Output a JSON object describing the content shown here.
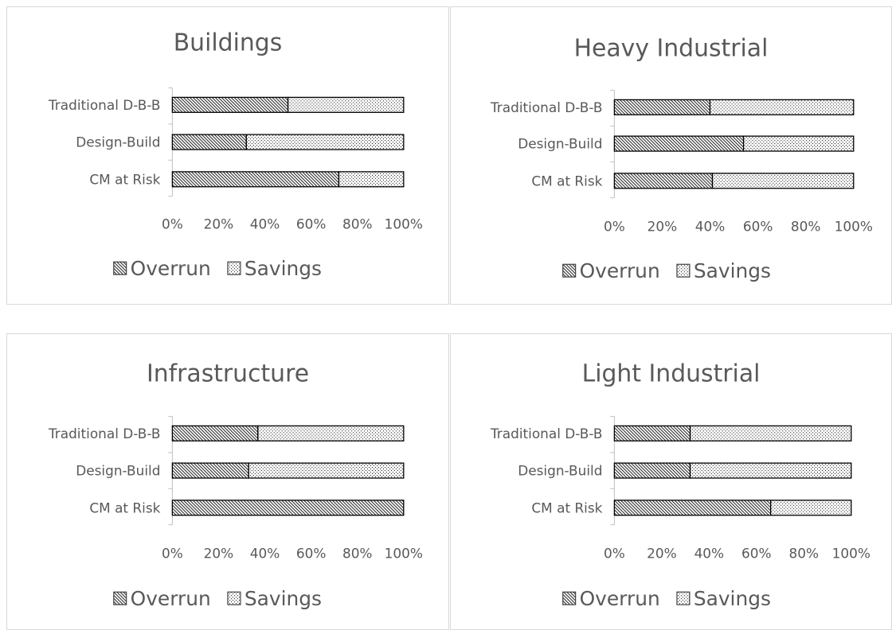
{
  "legend": [
    "Overrun",
    "Savings"
  ],
  "colors": {
    "text": "#595959",
    "bar_stroke": "#000000",
    "axis": "#bfbfbf",
    "panel_border": "#d9d9d9"
  },
  "chart_data": [
    {
      "type": "bar",
      "orientation": "horizontal",
      "stacked": "percent",
      "title": "Buildings",
      "categories": [
        "Traditional D-B-B",
        "Design-Build",
        "CM at Risk"
      ],
      "series": [
        {
          "name": "Overrun",
          "values": [
            50,
            32,
            72
          ]
        },
        {
          "name": "Savings",
          "values": [
            50,
            68,
            28
          ]
        }
      ],
      "xticks": [
        "0%",
        "20%",
        "40%",
        "60%",
        "80%",
        "100%"
      ],
      "xlim": [
        0,
        100
      ],
      "grid": false,
      "legend_position": "bottom"
    },
    {
      "type": "bar",
      "orientation": "horizontal",
      "stacked": "percent",
      "title": "Heavy Industrial",
      "categories": [
        "Traditional D-B-B",
        "Design-Build",
        "CM at Risk"
      ],
      "series": [
        {
          "name": "Overrun",
          "values": [
            40,
            54,
            41
          ]
        },
        {
          "name": "Savings",
          "values": [
            60,
            46,
            59
          ]
        }
      ],
      "xticks": [
        "0%",
        "20%",
        "40%",
        "60%",
        "80%",
        "100%"
      ],
      "xlim": [
        0,
        100
      ],
      "grid": false,
      "legend_position": "bottom"
    },
    {
      "type": "bar",
      "orientation": "horizontal",
      "stacked": "percent",
      "title": "Infrastructure",
      "categories": [
        "Traditional D-B-B",
        "Design-Build",
        "CM at Risk"
      ],
      "series": [
        {
          "name": "Overrun",
          "values": [
            37,
            33,
            100
          ]
        },
        {
          "name": "Savings",
          "values": [
            63,
            67,
            0
          ]
        }
      ],
      "xticks": [
        "0%",
        "20%",
        "40%",
        "60%",
        "80%",
        "100%"
      ],
      "xlim": [
        0,
        100
      ],
      "grid": false,
      "legend_position": "bottom"
    },
    {
      "type": "bar",
      "orientation": "horizontal",
      "stacked": "percent",
      "title": "Light Industrial",
      "categories": [
        "Traditional D-B-B",
        "Design-Build",
        "CM at Risk"
      ],
      "series": [
        {
          "name": "Overrun",
          "values": [
            32,
            32,
            66
          ]
        },
        {
          "name": "Savings",
          "values": [
            68,
            68,
            34
          ]
        }
      ],
      "xticks": [
        "0%",
        "20%",
        "40%",
        "60%",
        "80%",
        "100%"
      ],
      "xlim": [
        0,
        100
      ],
      "grid": false,
      "legend_position": "bottom"
    }
  ]
}
